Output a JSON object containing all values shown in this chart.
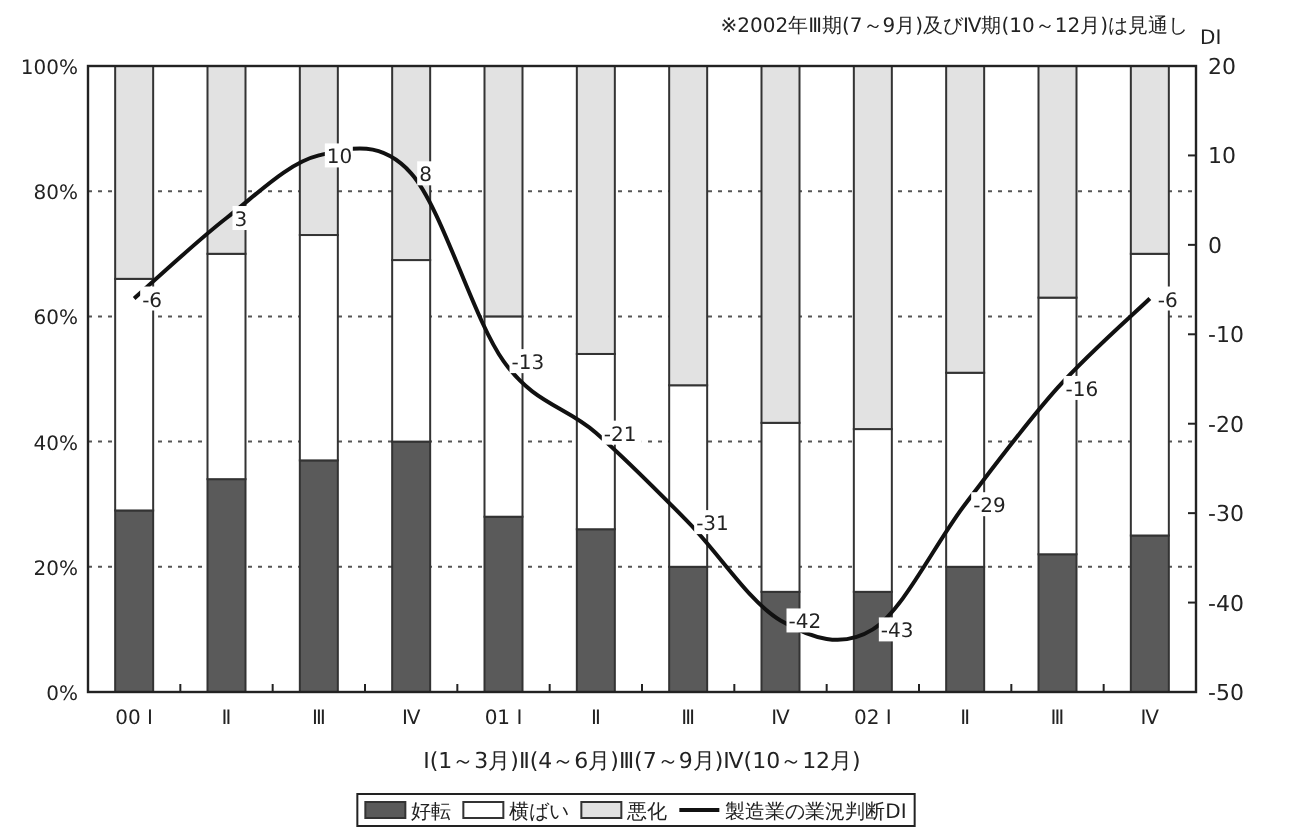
{
  "chart_data": {
    "type": "bar",
    "stacked": true,
    "annotations": [
      "※2002年Ⅲ期(7～9月)及びⅣ期(10～12月)は見通し"
    ],
    "xlabel": "Ⅰ(1～3月)Ⅱ(4～6月)Ⅲ(7～9月)Ⅳ(10～12月)",
    "y2label": "DI",
    "categories": [
      "00 Ⅰ",
      "Ⅱ",
      "Ⅲ",
      "Ⅳ",
      "01 Ⅰ",
      "Ⅱ",
      "Ⅲ",
      "Ⅳ",
      "02 Ⅰ",
      "Ⅱ",
      "Ⅲ",
      "Ⅳ"
    ],
    "series": [
      {
        "name": "好転",
        "color": "#5a5a5a",
        "values": [
          29,
          34,
          37,
          40,
          28,
          26,
          20,
          16,
          16,
          20,
          22,
          25
        ]
      },
      {
        "name": "横ばい",
        "color": "#ffffff",
        "values": [
          37,
          36,
          36,
          29,
          32,
          28,
          29,
          27,
          26,
          31,
          41,
          45
        ]
      },
      {
        "name": "悪化",
        "color": "#e2e2e2",
        "values": [
          34,
          30,
          27,
          31,
          40,
          46,
          51,
          57,
          58,
          49,
          37,
          30
        ]
      },
      {
        "name": "製造業の業況判断DI",
        "type": "line",
        "axis": "y2",
        "color": "#111111",
        "values": [
          -6,
          3,
          10,
          8,
          -13,
          -21,
          -31,
          -42,
          -43,
          -29,
          -16,
          -6
        ],
        "value_labels": [
          "-6",
          "3",
          "10",
          "8",
          "-13",
          "-21",
          "-31",
          "-42",
          "-43",
          "-29",
          "-16",
          "-6"
        ]
      }
    ],
    "ylim": [
      0,
      100
    ],
    "yticks": [
      {
        "value": 0,
        "label": "0%"
      },
      {
        "value": 20,
        "label": "20%"
      },
      {
        "value": 40,
        "label": "40%"
      },
      {
        "value": 60,
        "label": "60%"
      },
      {
        "value": 80,
        "label": "80%"
      },
      {
        "value": 100,
        "label": "100%"
      }
    ],
    "y2lim": [
      -50,
      20
    ],
    "y2ticks": [
      -50,
      -40,
      -30,
      -20,
      -10,
      0,
      10,
      20
    ],
    "grid": "y",
    "legend": "bottom",
    "line_style": "solid",
    "marker": "none"
  }
}
